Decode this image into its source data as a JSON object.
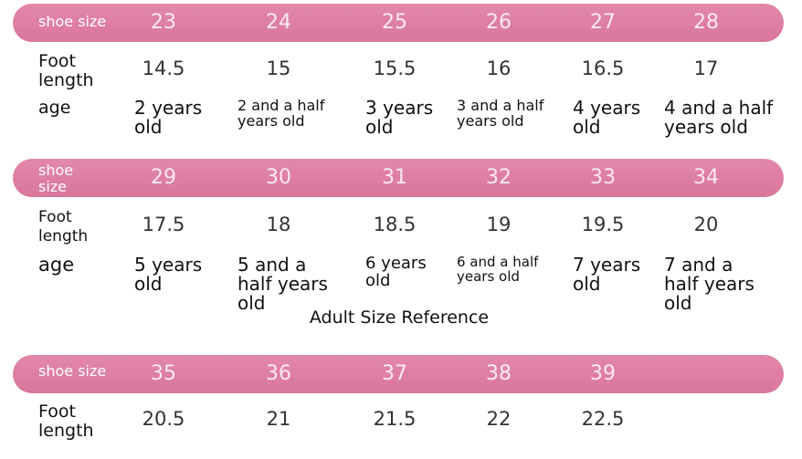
{
  "tables": [
    {
      "header_label": "shoe size",
      "sizes": [
        23,
        24,
        25,
        26,
        27,
        28
      ],
      "rows": [
        {
          "label": "Foot length",
          "values": [
            14.5,
            15,
            15.5,
            16,
            16.5,
            17
          ]
        },
        {
          "label": "age",
          "values": [
            "2 years old",
            "2 and a half years old",
            "3 years old",
            "3 and a half years old",
            "4 years old",
            "4 and a half years old"
          ]
        }
      ]
    },
    {
      "header_label": "shoe size",
      "sizes": [
        29,
        30,
        31,
        32,
        33,
        34
      ],
      "rows": [
        {
          "label": "Foot length",
          "values": [
            17.5,
            18,
            18.5,
            19,
            19.5,
            20
          ]
        },
        {
          "label": "age",
          "values": [
            "5 years old",
            "5 and a half years old",
            "6 years old",
            "6 and a half years old",
            "7 years old",
            "7 and a half years old"
          ]
        }
      ]
    },
    {
      "header_label": "shoe size",
      "sizes": [
        35,
        36,
        37,
        38,
        39
      ],
      "rows": [
        {
          "label": "Foot length",
          "values": [
            20.5,
            21,
            21.5,
            22,
            22.5
          ]
        }
      ]
    }
  ],
  "section_title": "Adult Size Reference"
}
